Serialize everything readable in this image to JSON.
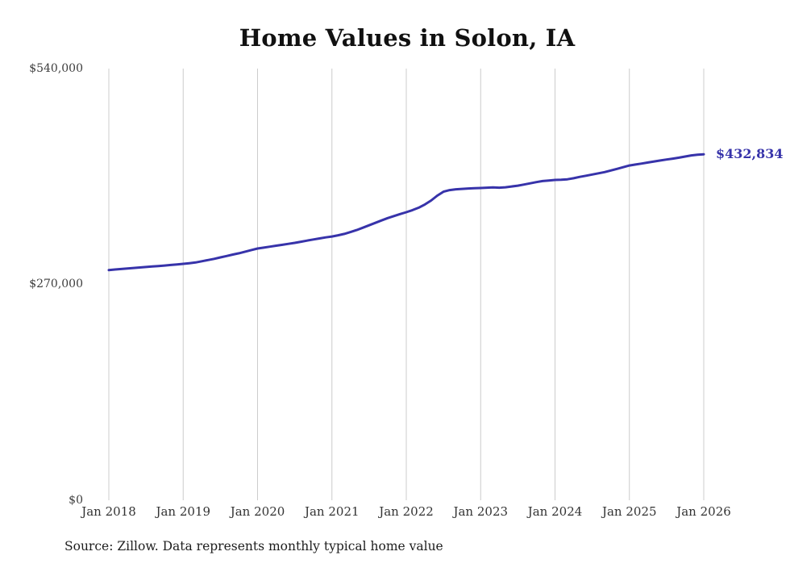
{
  "title": "Home Values in Solon, IA",
  "end_label": "$432,834",
  "source_note": "Source: Zillow. Data represents monthly typical home value",
  "colors": {
    "line": "#3733aa",
    "end_label": "#3733aa",
    "grid": "#cccccc",
    "axis_text": "#3d3d3d"
  },
  "chart_data": {
    "type": "line",
    "title": "Home Values in Solon, IA",
    "xlabel": "",
    "ylabel": "",
    "ylim": [
      0,
      540000
    ],
    "grid": "vertical-at-january",
    "legend": "none",
    "y_tick_labels": [
      "$0",
      "$270,000",
      "$540,000"
    ],
    "x_tick_labels": [
      "Jan 2018",
      "Jan 2019",
      "Jan 2020",
      "Jan 2021",
      "Jan 2022",
      "Jan 2023",
      "Jan 2024",
      "Jan 2025",
      "Jan 2026"
    ],
    "x_unit": "months since Jan 2018",
    "end_annotation": {
      "text": "$432,834",
      "x_index": 96,
      "value": 432834
    },
    "series": [
      {
        "name": "Monthly typical home value",
        "values": [
          288000,
          288700,
          289300,
          290000,
          290600,
          291200,
          291800,
          292400,
          293000,
          293600,
          294300,
          295000,
          295700,
          296500,
          297500,
          299000,
          300500,
          302000,
          303800,
          305500,
          307300,
          309000,
          311000,
          313000,
          314900,
          316000,
          317200,
          318400,
          319600,
          320800,
          322000,
          323400,
          324800,
          326200,
          327500,
          328800,
          330000,
          331500,
          333200,
          335500,
          338000,
          341000,
          344000,
          347000,
          350000,
          353000,
          355500,
          358000,
          360300,
          363000,
          366000,
          370000,
          375000,
          381000,
          386000,
          388000,
          389000,
          389500,
          390000,
          390300,
          390600,
          391000,
          391300,
          391000,
          391500,
          392500,
          393500,
          395000,
          396500,
          398000,
          399300,
          400000,
          400700,
          401000,
          401500,
          402800,
          404500,
          406000,
          407500,
          409000,
          410500,
          412500,
          414500,
          416700,
          418800,
          420000,
          421200,
          422500,
          423800,
          425000,
          426200,
          427400,
          428600,
          430000,
          431400,
          432200,
          432834
        ]
      }
    ]
  }
}
